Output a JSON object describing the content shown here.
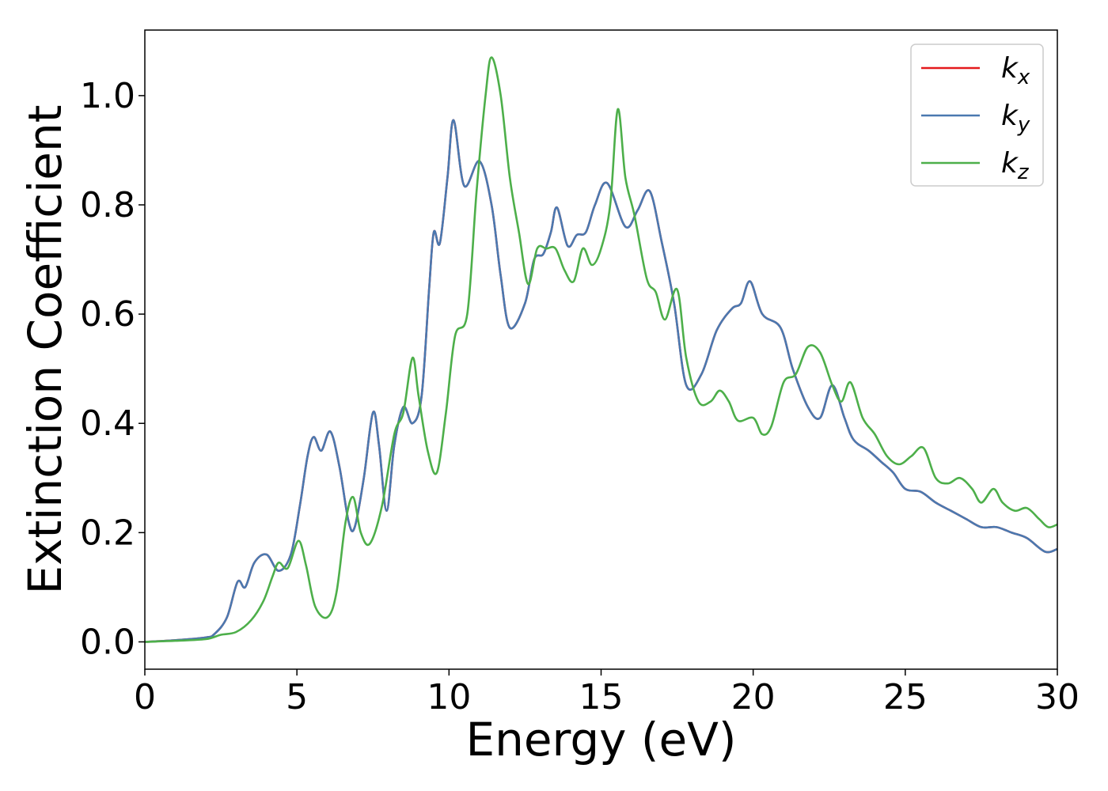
{
  "chart_data": {
    "type": "line",
    "xlabel": "Energy (eV)",
    "ylabel": "Extinction Coefficient",
    "xlim": [
      0,
      30
    ],
    "ylim": [
      -0.05,
      1.12
    ],
    "xticks": [
      "0",
      "5",
      "10",
      "15",
      "20",
      "25",
      "30"
    ],
    "yticks": [
      "0.0",
      "0.2",
      "0.4",
      "0.6",
      "0.8",
      "1.0"
    ],
    "grid": false,
    "legend_position": "top-right",
    "series": [
      {
        "name": "kx",
        "legend_base": "k",
        "legend_sub": "x",
        "color": "#e41a1c",
        "points": [
          [
            0,
            0
          ],
          [
            1,
            0.003
          ],
          [
            2,
            0.008
          ],
          [
            2.3,
            0.015
          ],
          [
            2.7,
            0.045
          ],
          [
            3.05,
            0.11
          ],
          [
            3.3,
            0.1
          ],
          [
            3.6,
            0.145
          ],
          [
            4.0,
            0.16
          ],
          [
            4.4,
            0.13
          ],
          [
            4.8,
            0.16
          ],
          [
            5.1,
            0.25
          ],
          [
            5.35,
            0.34
          ],
          [
            5.55,
            0.375
          ],
          [
            5.8,
            0.35
          ],
          [
            6.1,
            0.385
          ],
          [
            6.4,
            0.32
          ],
          [
            6.7,
            0.22
          ],
          [
            6.9,
            0.21
          ],
          [
            7.2,
            0.3
          ],
          [
            7.5,
            0.42
          ],
          [
            7.7,
            0.36
          ],
          [
            7.95,
            0.24
          ],
          [
            8.2,
            0.36
          ],
          [
            8.5,
            0.43
          ],
          [
            8.8,
            0.4
          ],
          [
            9.1,
            0.45
          ],
          [
            9.35,
            0.65
          ],
          [
            9.5,
            0.75
          ],
          [
            9.7,
            0.73
          ],
          [
            9.95,
            0.85
          ],
          [
            10.15,
            0.955
          ],
          [
            10.5,
            0.835
          ],
          [
            11.0,
            0.88
          ],
          [
            11.4,
            0.8
          ],
          [
            11.7,
            0.67
          ],
          [
            12.0,
            0.575
          ],
          [
            12.5,
            0.62
          ],
          [
            12.8,
            0.7
          ],
          [
            13.1,
            0.71
          ],
          [
            13.35,
            0.75
          ],
          [
            13.55,
            0.795
          ],
          [
            13.9,
            0.725
          ],
          [
            14.2,
            0.745
          ],
          [
            14.5,
            0.75
          ],
          [
            14.8,
            0.8
          ],
          [
            15.2,
            0.84
          ],
          [
            15.8,
            0.76
          ],
          [
            16.2,
            0.79
          ],
          [
            16.6,
            0.825
          ],
          [
            17.0,
            0.73
          ],
          [
            17.4,
            0.62
          ],
          [
            17.8,
            0.47
          ],
          [
            18.3,
            0.49
          ],
          [
            18.8,
            0.57
          ],
          [
            19.3,
            0.61
          ],
          [
            19.6,
            0.62
          ],
          [
            19.9,
            0.66
          ],
          [
            20.3,
            0.6
          ],
          [
            20.9,
            0.575
          ],
          [
            21.3,
            0.5
          ],
          [
            21.8,
            0.43
          ],
          [
            22.2,
            0.41
          ],
          [
            22.6,
            0.47
          ],
          [
            23.0,
            0.41
          ],
          [
            23.3,
            0.37
          ],
          [
            23.8,
            0.35
          ],
          [
            24.2,
            0.33
          ],
          [
            24.6,
            0.31
          ],
          [
            25.0,
            0.28
          ],
          [
            25.5,
            0.275
          ],
          [
            26.0,
            0.255
          ],
          [
            26.5,
            0.24
          ],
          [
            27.0,
            0.225
          ],
          [
            27.5,
            0.21
          ],
          [
            28.0,
            0.21
          ],
          [
            28.5,
            0.2
          ],
          [
            29.0,
            0.19
          ],
          [
            29.6,
            0.165
          ],
          [
            30.0,
            0.17
          ]
        ]
      },
      {
        "name": "ky",
        "legend_base": "k",
        "legend_sub": "y",
        "color": "#4a79b0",
        "points": [
          [
            0,
            0
          ],
          [
            1,
            0.003
          ],
          [
            2,
            0.008
          ],
          [
            2.3,
            0.015
          ],
          [
            2.7,
            0.045
          ],
          [
            3.05,
            0.11
          ],
          [
            3.3,
            0.1
          ],
          [
            3.6,
            0.145
          ],
          [
            4.0,
            0.16
          ],
          [
            4.4,
            0.13
          ],
          [
            4.8,
            0.16
          ],
          [
            5.1,
            0.25
          ],
          [
            5.35,
            0.34
          ],
          [
            5.55,
            0.375
          ],
          [
            5.8,
            0.35
          ],
          [
            6.1,
            0.385
          ],
          [
            6.4,
            0.32
          ],
          [
            6.7,
            0.22
          ],
          [
            6.9,
            0.21
          ],
          [
            7.2,
            0.3
          ],
          [
            7.5,
            0.42
          ],
          [
            7.7,
            0.36
          ],
          [
            7.95,
            0.24
          ],
          [
            8.2,
            0.36
          ],
          [
            8.5,
            0.43
          ],
          [
            8.8,
            0.4
          ],
          [
            9.1,
            0.45
          ],
          [
            9.35,
            0.65
          ],
          [
            9.5,
            0.75
          ],
          [
            9.7,
            0.73
          ],
          [
            9.95,
            0.85
          ],
          [
            10.15,
            0.955
          ],
          [
            10.5,
            0.835
          ],
          [
            11.0,
            0.88
          ],
          [
            11.4,
            0.8
          ],
          [
            11.7,
            0.67
          ],
          [
            12.0,
            0.575
          ],
          [
            12.5,
            0.62
          ],
          [
            12.8,
            0.7
          ],
          [
            13.1,
            0.71
          ],
          [
            13.35,
            0.75
          ],
          [
            13.55,
            0.795
          ],
          [
            13.9,
            0.725
          ],
          [
            14.2,
            0.745
          ],
          [
            14.5,
            0.75
          ],
          [
            14.8,
            0.8
          ],
          [
            15.2,
            0.84
          ],
          [
            15.8,
            0.76
          ],
          [
            16.2,
            0.79
          ],
          [
            16.6,
            0.825
          ],
          [
            17.0,
            0.73
          ],
          [
            17.4,
            0.62
          ],
          [
            17.8,
            0.47
          ],
          [
            18.3,
            0.49
          ],
          [
            18.8,
            0.57
          ],
          [
            19.3,
            0.61
          ],
          [
            19.6,
            0.62
          ],
          [
            19.9,
            0.66
          ],
          [
            20.3,
            0.6
          ],
          [
            20.9,
            0.575
          ],
          [
            21.3,
            0.5
          ],
          [
            21.8,
            0.43
          ],
          [
            22.2,
            0.41
          ],
          [
            22.6,
            0.47
          ],
          [
            23.0,
            0.41
          ],
          [
            23.3,
            0.37
          ],
          [
            23.8,
            0.35
          ],
          [
            24.2,
            0.33
          ],
          [
            24.6,
            0.31
          ],
          [
            25.0,
            0.28
          ],
          [
            25.5,
            0.275
          ],
          [
            26.0,
            0.255
          ],
          [
            26.5,
            0.24
          ],
          [
            27.0,
            0.225
          ],
          [
            27.5,
            0.21
          ],
          [
            28.0,
            0.21
          ],
          [
            28.5,
            0.2
          ],
          [
            29.0,
            0.19
          ],
          [
            29.6,
            0.165
          ],
          [
            30.0,
            0.17
          ]
        ]
      },
      {
        "name": "kz",
        "legend_base": "k",
        "legend_sub": "z",
        "color": "#4daf4a",
        "points": [
          [
            0,
            0
          ],
          [
            1,
            0.002
          ],
          [
            2,
            0.005
          ],
          [
            2.5,
            0.013
          ],
          [
            3.0,
            0.018
          ],
          [
            3.5,
            0.04
          ],
          [
            3.9,
            0.075
          ],
          [
            4.2,
            0.12
          ],
          [
            4.4,
            0.145
          ],
          [
            4.7,
            0.135
          ],
          [
            5.05,
            0.185
          ],
          [
            5.3,
            0.14
          ],
          [
            5.6,
            0.065
          ],
          [
            6.0,
            0.045
          ],
          [
            6.3,
            0.09
          ],
          [
            6.6,
            0.22
          ],
          [
            6.85,
            0.265
          ],
          [
            7.1,
            0.2
          ],
          [
            7.4,
            0.18
          ],
          [
            7.8,
            0.25
          ],
          [
            8.2,
            0.38
          ],
          [
            8.5,
            0.42
          ],
          [
            8.8,
            0.52
          ],
          [
            9.0,
            0.45
          ],
          [
            9.3,
            0.35
          ],
          [
            9.6,
            0.31
          ],
          [
            9.9,
            0.42
          ],
          [
            10.2,
            0.56
          ],
          [
            10.6,
            0.6
          ],
          [
            10.9,
            0.82
          ],
          [
            11.2,
            1.0
          ],
          [
            11.4,
            1.07
          ],
          [
            11.7,
            1.0
          ],
          [
            12.0,
            0.85
          ],
          [
            12.3,
            0.75
          ],
          [
            12.6,
            0.655
          ],
          [
            12.9,
            0.72
          ],
          [
            13.2,
            0.72
          ],
          [
            13.5,
            0.72
          ],
          [
            13.8,
            0.68
          ],
          [
            14.1,
            0.66
          ],
          [
            14.4,
            0.72
          ],
          [
            14.7,
            0.69
          ],
          [
            15.0,
            0.72
          ],
          [
            15.3,
            0.8
          ],
          [
            15.55,
            0.975
          ],
          [
            15.8,
            0.85
          ],
          [
            16.1,
            0.78
          ],
          [
            16.5,
            0.665
          ],
          [
            16.8,
            0.64
          ],
          [
            17.1,
            0.59
          ],
          [
            17.5,
            0.645
          ],
          [
            17.8,
            0.52
          ],
          [
            18.2,
            0.44
          ],
          [
            18.6,
            0.44
          ],
          [
            18.9,
            0.46
          ],
          [
            19.2,
            0.44
          ],
          [
            19.5,
            0.405
          ],
          [
            20.0,
            0.41
          ],
          [
            20.3,
            0.38
          ],
          [
            20.6,
            0.395
          ],
          [
            21.0,
            0.475
          ],
          [
            21.4,
            0.49
          ],
          [
            21.8,
            0.54
          ],
          [
            22.2,
            0.53
          ],
          [
            22.6,
            0.47
          ],
          [
            22.9,
            0.44
          ],
          [
            23.2,
            0.475
          ],
          [
            23.6,
            0.41
          ],
          [
            24.0,
            0.38
          ],
          [
            24.4,
            0.34
          ],
          [
            24.8,
            0.325
          ],
          [
            25.2,
            0.34
          ],
          [
            25.6,
            0.355
          ],
          [
            26.0,
            0.3
          ],
          [
            26.4,
            0.29
          ],
          [
            26.8,
            0.3
          ],
          [
            27.2,
            0.28
          ],
          [
            27.5,
            0.255
          ],
          [
            27.9,
            0.28
          ],
          [
            28.2,
            0.255
          ],
          [
            28.6,
            0.24
          ],
          [
            29.0,
            0.245
          ],
          [
            29.4,
            0.225
          ],
          [
            29.7,
            0.21
          ],
          [
            30.0,
            0.215
          ]
        ]
      }
    ]
  }
}
